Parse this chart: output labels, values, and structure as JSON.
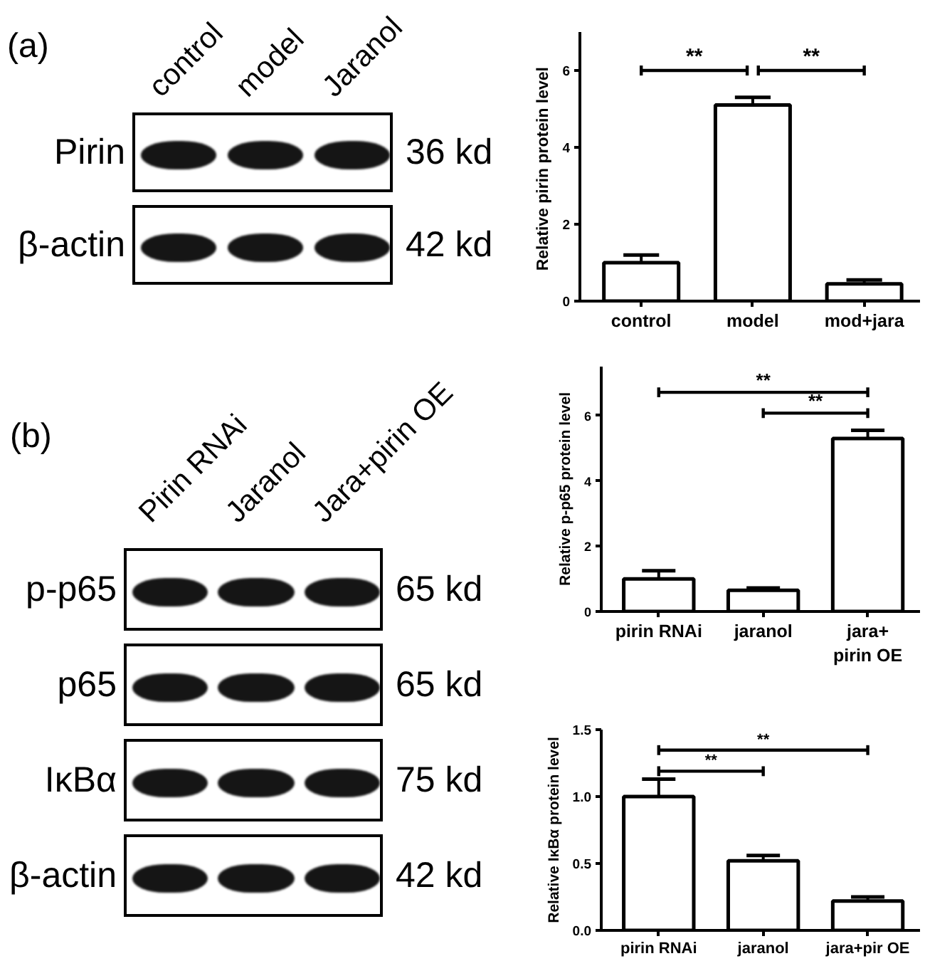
{
  "chart_data": [
    {
      "type": "other",
      "title": "(a)",
      "categories": [
        "control",
        "model",
        "Jaranol"
      ],
      "y_categories": [
        "Pirin",
        "β-actin"
      ],
      "y2_categories": [
        "36 kd",
        "42 kd"
      ]
    },
    {
      "type": "bar",
      "ylabel": "Relative  pirin protein level",
      "categories": [
        "control",
        "model",
        "mod+jara"
      ],
      "values": [
        1.0,
        5.1,
        0.45
      ],
      "errors": [
        0.2,
        0.2,
        0.1
      ],
      "color": "#ffffff",
      "ylim": [
        0,
        7
      ],
      "yticks": [
        0,
        2,
        4,
        6
      ],
      "annotations": [
        "**",
        "**"
      ]
    },
    {
      "type": "other",
      "title": "(b)",
      "categories": [
        "Pirin RNAi",
        "Jaranol",
        "Jara+pirin OE"
      ],
      "y_categories": [
        "p-p65",
        "p65",
        "IκBα",
        "β-actin"
      ],
      "y2_categories": [
        "65 kd",
        "65 kd",
        "75 kd",
        "42 kd"
      ]
    },
    {
      "type": "bar",
      "ylabel": "Relative p-p65 protein level",
      "categories": [
        "pirin RNAi",
        "jaranol",
        "jara+\npirin OE"
      ],
      "values": [
        1.0,
        0.65,
        5.3
      ],
      "errors": [
        0.25,
        0.07,
        0.25
      ],
      "color": "#ffffff",
      "ylim": [
        0,
        7.5
      ],
      "yticks": [
        0,
        2,
        4,
        6
      ],
      "annotations": [
        "**",
        "**"
      ]
    },
    {
      "type": "bar",
      "ylabel": "Relative IκBα protein level",
      "categories": [
        "pirin RNAi",
        "jaranol",
        "jara+pir OE"
      ],
      "values": [
        1.0,
        0.52,
        0.22
      ],
      "errors": [
        0.13,
        0.04,
        0.03
      ],
      "color": "#ffffff",
      "ylim": [
        0,
        1.5
      ],
      "yticks": [
        {
          "value": 0,
          "label": "0.0"
        },
        {
          "value": 0.5,
          "label": "0.5"
        },
        {
          "value": 1,
          "label": "1.0"
        },
        {
          "value": 1.5,
          "label": "1.5"
        }
      ],
      "annotations": [
        "**",
        "**"
      ]
    }
  ]
}
